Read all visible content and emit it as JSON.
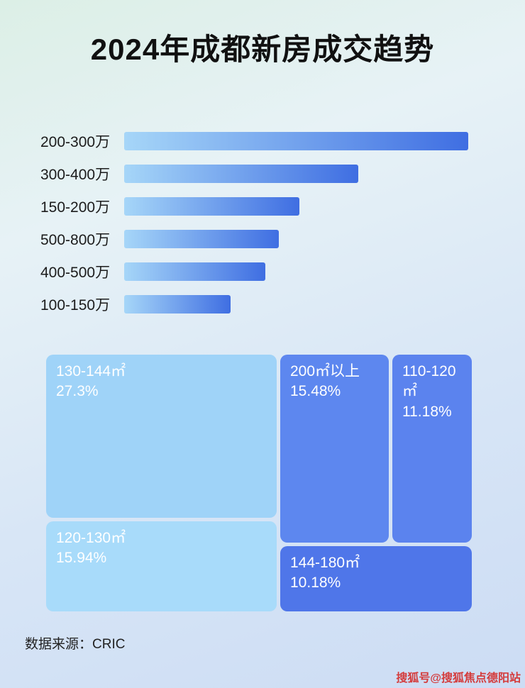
{
  "page": {
    "title": "2024年成都新房成交趋势",
    "source_label": "数据来源：CRIC",
    "watermark": "搜狐号@搜狐焦点德阳站"
  },
  "colors": {
    "bar_gradient_start": "#a6d6f8",
    "bar_gradient_end": "#3f6ee2",
    "title_text": "#111111",
    "label_text": "#1c1c1c",
    "watermark_red": "#d43c3c"
  },
  "chart_data": [
    {
      "type": "bar",
      "orientation": "horizontal",
      "title": "",
      "categories": [
        "200-300万",
        "300-400万",
        "150-200万",
        "500-800万",
        "400-500万",
        "100-150万"
      ],
      "values": [
        100,
        68,
        51,
        45,
        41,
        31
      ],
      "value_note": "bars carry no printed numbers; values are estimated relative lengths with longest bar = 100",
      "xlabel": "",
      "ylabel": ""
    },
    {
      "type": "treemap",
      "title": "",
      "items": [
        {
          "label": "130-144㎡",
          "percent": "27.3%",
          "value": 27.3,
          "color": "#9fd3f8"
        },
        {
          "label": "120-130㎡",
          "percent": "15.94%",
          "value": 15.94,
          "color": "#a8dbfa"
        },
        {
          "label": "200㎡以上",
          "percent": "15.48%",
          "value": 15.48,
          "color": "#5d87ef"
        },
        {
          "label": "110-120㎡",
          "percent": "11.18%",
          "value": 11.18,
          "color": "#5b83ee"
        },
        {
          "label": "144-180㎡",
          "percent": "10.18%",
          "value": 10.18,
          "color": "#4f76e9"
        }
      ]
    }
  ]
}
